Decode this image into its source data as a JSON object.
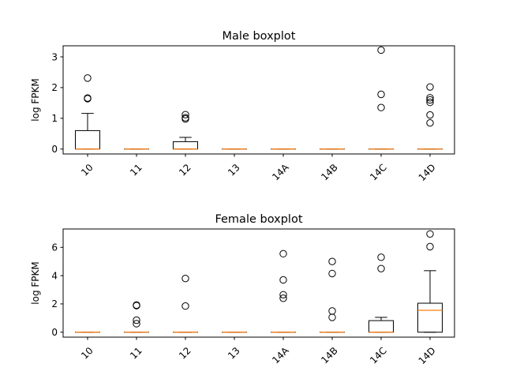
{
  "chart_data": [
    {
      "type": "boxplot",
      "title": "Male boxplot",
      "ylabel": "log FPKM",
      "xlabel": "",
      "categories": [
        "10",
        "11",
        "12",
        "13",
        "14A",
        "14B",
        "14C",
        "14D"
      ],
      "ylim": [
        -0.16,
        3.36
      ],
      "yticks": [
        0,
        1,
        2,
        3
      ],
      "boxes": [
        {
          "q1": 0,
          "median": 0,
          "q3": 0.6,
          "whislo": 0,
          "whishi": 1.16,
          "fliers": [
            1.64,
            1.66,
            2.31
          ]
        },
        {
          "q1": 0,
          "median": 0,
          "q3": 0,
          "whislo": 0,
          "whishi": 0,
          "fliers": []
        },
        {
          "q1": 0,
          "median": 0,
          "q3": 0.24,
          "whislo": 0,
          "whishi": 0.38,
          "fliers": [
            0.98,
            1.02,
            1.12
          ]
        },
        {
          "q1": 0,
          "median": 0,
          "q3": 0,
          "whislo": 0,
          "whishi": 0,
          "fliers": []
        },
        {
          "q1": 0,
          "median": 0,
          "q3": 0,
          "whislo": 0,
          "whishi": 0,
          "fliers": []
        },
        {
          "q1": 0,
          "median": 0,
          "q3": 0,
          "whislo": 0,
          "whishi": 0,
          "fliers": []
        },
        {
          "q1": 0,
          "median": 0,
          "q3": 0,
          "whislo": 0,
          "whishi": 0,
          "fliers": [
            1.35,
            1.78,
            3.22
          ]
        },
        {
          "q1": 0,
          "median": 0,
          "q3": 0,
          "whislo": 0,
          "whishi": 0,
          "fliers": [
            0.85,
            1.11,
            1.52,
            1.6,
            1.67,
            2.02
          ]
        }
      ]
    },
    {
      "type": "boxplot",
      "title": "Female boxplot",
      "ylabel": "log FPKM",
      "xlabel": "",
      "categories": [
        "10",
        "11",
        "12",
        "13",
        "14A",
        "14B",
        "14C",
        "14D"
      ],
      "ylim": [
        -0.35,
        7.3
      ],
      "yticks": [
        0,
        2,
        4,
        6
      ],
      "boxes": [
        {
          "q1": 0,
          "median": 0,
          "q3": 0,
          "whislo": 0,
          "whishi": 0,
          "fliers": []
        },
        {
          "q1": 0,
          "median": 0,
          "q3": 0,
          "whislo": 0,
          "whishi": 0,
          "fliers": [
            0.6,
            0.85,
            1.88,
            1.92
          ]
        },
        {
          "q1": 0,
          "median": 0,
          "q3": 0,
          "whislo": 0,
          "whishi": 0,
          "fliers": [
            1.85,
            3.8
          ]
        },
        {
          "q1": 0,
          "median": 0,
          "q3": 0,
          "whislo": 0,
          "whishi": 0,
          "fliers": []
        },
        {
          "q1": 0,
          "median": 0,
          "q3": 0,
          "whislo": 0,
          "whishi": 0,
          "fliers": [
            2.4,
            2.65,
            3.7,
            5.55
          ]
        },
        {
          "q1": 0,
          "median": 0,
          "q3": 0,
          "whislo": 0,
          "whishi": 0,
          "fliers": [
            1.05,
            1.5,
            4.15,
            5.0
          ]
        },
        {
          "q1": 0,
          "median": 0,
          "q3": 0.82,
          "whislo": 0,
          "whishi": 1.05,
          "fliers": [
            4.5,
            5.3
          ]
        },
        {
          "q1": 0,
          "median": 1.55,
          "q3": 2.05,
          "whislo": 0,
          "whishi": 4.35,
          "fliers": [
            6.05,
            6.95
          ]
        }
      ]
    }
  ],
  "colors": {
    "median": "#ff7f0e",
    "frame": "#000000"
  }
}
